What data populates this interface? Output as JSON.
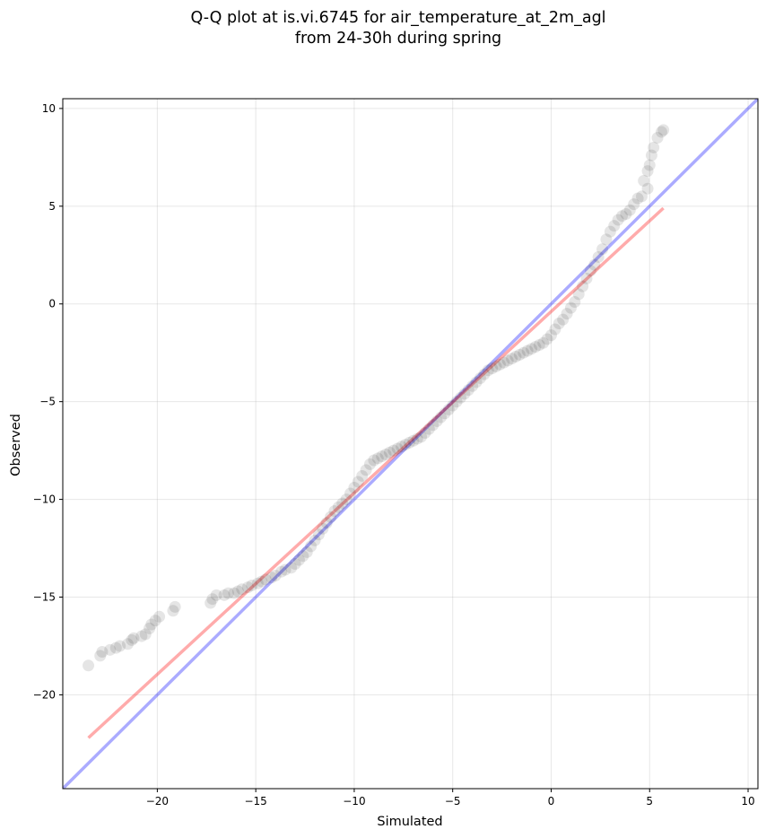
{
  "chart_data": {
    "type": "scatter",
    "title_line1": "Q-Q plot at is.vi.6745 for air_temperature_at_2m_agl",
    "title_line2": "from 24-30h during spring",
    "xlabel": "Simulated",
    "ylabel": "Observed",
    "xlim": [
      -24.8,
      10.5
    ],
    "ylim": [
      -24.8,
      10.5
    ],
    "xticks": [
      -20,
      -15,
      -10,
      -5,
      0,
      5,
      10
    ],
    "yticks": [
      -20,
      -15,
      -10,
      -5,
      0,
      5,
      10
    ],
    "xtick_labels": [
      "−20",
      "−15",
      "−10",
      "−5",
      "0",
      "5",
      "10"
    ],
    "ytick_labels": [
      "−20",
      "−15",
      "−10",
      "−5",
      "0",
      "5",
      "10"
    ],
    "grid": true,
    "identity_line": {
      "color": "#0000ff",
      "alpha": 0.33
    },
    "fit_line": {
      "color": "#ff0000",
      "alpha": 0.33,
      "x": [
        -23.5,
        5.7
      ],
      "y": [
        -22.2,
        4.9
      ]
    },
    "points_color": "#000000",
    "points": [
      [
        -23.5,
        -18.5
      ],
      [
        -22.9,
        -18.0
      ],
      [
        -22.8,
        -17.8
      ],
      [
        -22.4,
        -17.7
      ],
      [
        -22.1,
        -17.6
      ],
      [
        -21.9,
        -17.5
      ],
      [
        -21.5,
        -17.4
      ],
      [
        -21.3,
        -17.2
      ],
      [
        -21.2,
        -17.1
      ],
      [
        -20.8,
        -17.0
      ],
      [
        -20.6,
        -16.9
      ],
      [
        -20.4,
        -16.6
      ],
      [
        -20.3,
        -16.4
      ],
      [
        -20.1,
        -16.2
      ],
      [
        -19.9,
        -16.0
      ],
      [
        -19.2,
        -15.7
      ],
      [
        -19.1,
        -15.5
      ],
      [
        -17.3,
        -15.3
      ],
      [
        -17.2,
        -15.1
      ],
      [
        -17.0,
        -14.9
      ],
      [
        -16.6,
        -14.9
      ],
      [
        -16.4,
        -14.8
      ],
      [
        -16.1,
        -14.8
      ],
      [
        -15.9,
        -14.7
      ],
      [
        -15.7,
        -14.6
      ],
      [
        -15.4,
        -14.5
      ],
      [
        -15.2,
        -14.4
      ],
      [
        -14.9,
        -14.3
      ],
      [
        -14.7,
        -14.2
      ],
      [
        -14.5,
        -14.1
      ],
      [
        -14.2,
        -14.0
      ],
      [
        -14.0,
        -13.9
      ],
      [
        -13.7,
        -13.7
      ],
      [
        -13.5,
        -13.6
      ],
      [
        -13.2,
        -13.5
      ],
      [
        -13.0,
        -13.3
      ],
      [
        -12.8,
        -13.1
      ],
      [
        -12.6,
        -12.9
      ],
      [
        -12.4,
        -12.7
      ],
      [
        -12.2,
        -12.4
      ],
      [
        -12.0,
        -12.1
      ],
      [
        -11.8,
        -11.8
      ],
      [
        -11.6,
        -11.5
      ],
      [
        -11.4,
        -11.2
      ],
      [
        -11.2,
        -10.9
      ],
      [
        -11.0,
        -10.6
      ],
      [
        -10.8,
        -10.4
      ],
      [
        -10.6,
        -10.2
      ],
      [
        -10.4,
        -10.0
      ],
      [
        -10.2,
        -9.7
      ],
      [
        -10.0,
        -9.4
      ],
      [
        -9.8,
        -9.1
      ],
      [
        -9.6,
        -8.8
      ],
      [
        -9.4,
        -8.5
      ],
      [
        -9.2,
        -8.2
      ],
      [
        -9.0,
        -8.0
      ],
      [
        -8.8,
        -7.9
      ],
      [
        -8.6,
        -7.8
      ],
      [
        -8.4,
        -7.7
      ],
      [
        -8.2,
        -7.6
      ],
      [
        -8.0,
        -7.5
      ],
      [
        -7.8,
        -7.4
      ],
      [
        -7.6,
        -7.3
      ],
      [
        -7.4,
        -7.2
      ],
      [
        -7.2,
        -7.1
      ],
      [
        -7.0,
        -7.0
      ],
      [
        -6.8,
        -6.9
      ],
      [
        -6.6,
        -6.8
      ],
      [
        -6.4,
        -6.6
      ],
      [
        -6.2,
        -6.4
      ],
      [
        -6.0,
        -6.2
      ],
      [
        -5.8,
        -6.0
      ],
      [
        -5.6,
        -5.8
      ],
      [
        -5.4,
        -5.6
      ],
      [
        -5.2,
        -5.4
      ],
      [
        -5.0,
        -5.2
      ],
      [
        -4.8,
        -5.0
      ],
      [
        -4.6,
        -4.8
      ],
      [
        -4.4,
        -4.6
      ],
      [
        -4.2,
        -4.4
      ],
      [
        -4.0,
        -4.2
      ],
      [
        -3.8,
        -4.0
      ],
      [
        -3.6,
        -3.8
      ],
      [
        -3.4,
        -3.6
      ],
      [
        -3.2,
        -3.4
      ],
      [
        -3.0,
        -3.3
      ],
      [
        -2.8,
        -3.2
      ],
      [
        -2.6,
        -3.1
      ],
      [
        -2.4,
        -3.0
      ],
      [
        -2.2,
        -2.9
      ],
      [
        -2.0,
        -2.8
      ],
      [
        -1.8,
        -2.7
      ],
      [
        -1.6,
        -2.6
      ],
      [
        -1.4,
        -2.5
      ],
      [
        -1.2,
        -2.4
      ],
      [
        -1.0,
        -2.3
      ],
      [
        -0.8,
        -2.2
      ],
      [
        -0.6,
        -2.1
      ],
      [
        -0.4,
        -2.0
      ],
      [
        -0.2,
        -1.8
      ],
      [
        0.0,
        -1.6
      ],
      [
        0.2,
        -1.3
      ],
      [
        0.4,
        -1.0
      ],
      [
        0.6,
        -0.8
      ],
      [
        0.8,
        -0.5
      ],
      [
        1.0,
        -0.2
      ],
      [
        1.2,
        0.1
      ],
      [
        1.4,
        0.5
      ],
      [
        1.6,
        0.9
      ],
      [
        1.8,
        1.3
      ],
      [
        2.0,
        1.7
      ],
      [
        2.2,
        2.0
      ],
      [
        2.4,
        2.4
      ],
      [
        2.6,
        2.8
      ],
      [
        2.8,
        3.3
      ],
      [
        3.0,
        3.7
      ],
      [
        3.2,
        4.0
      ],
      [
        3.4,
        4.3
      ],
      [
        3.6,
        4.5
      ],
      [
        3.8,
        4.6
      ],
      [
        4.0,
        4.8
      ],
      [
        4.2,
        5.1
      ],
      [
        4.4,
        5.4
      ],
      [
        4.6,
        5.5
      ],
      [
        4.9,
        5.9
      ],
      [
        4.7,
        6.3
      ],
      [
        4.9,
        6.8
      ],
      [
        5.0,
        7.1
      ],
      [
        5.1,
        7.6
      ],
      [
        5.2,
        8.0
      ],
      [
        5.4,
        8.5
      ],
      [
        5.6,
        8.8
      ],
      [
        5.7,
        8.9
      ]
    ]
  }
}
